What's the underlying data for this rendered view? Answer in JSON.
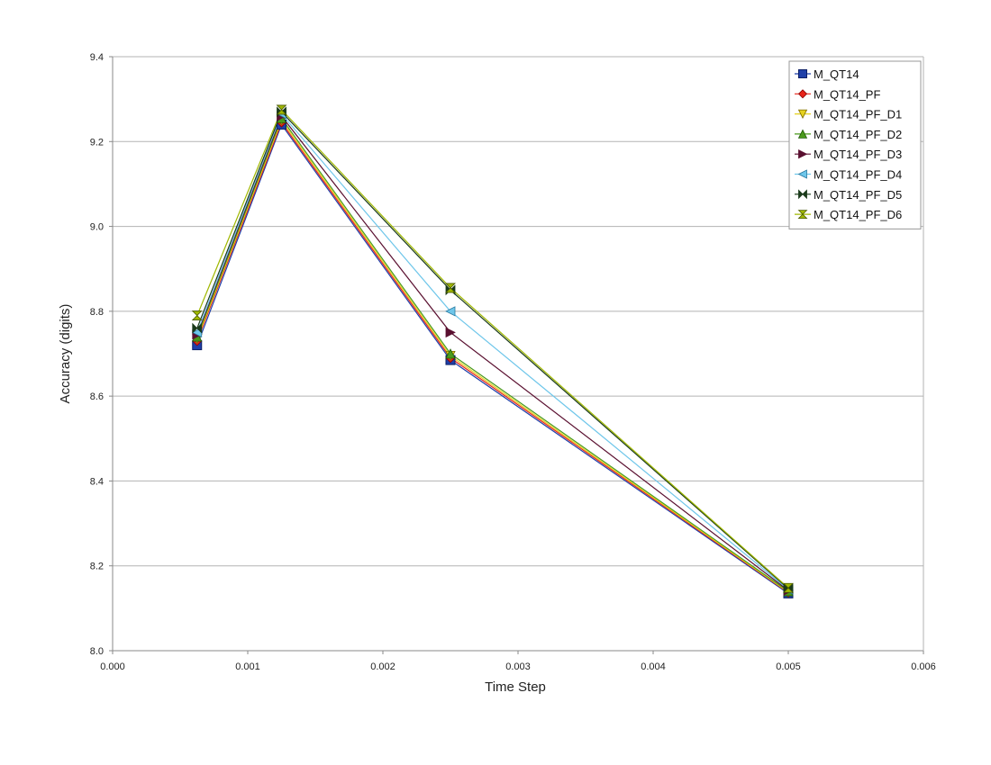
{
  "chart_data": {
    "type": "line",
    "title": "",
    "xlabel": "Time Step",
    "ylabel": "Accuracy (digits)",
    "xlim": [
      0.0,
      0.006
    ],
    "ylim": [
      8.0,
      9.4
    ],
    "xticks": [
      "0.000",
      "0.001",
      "0.002",
      "0.003",
      "0.004",
      "0.005",
      "0.006"
    ],
    "yticks": [
      "8.0",
      "8.2",
      "8.4",
      "8.6",
      "8.8",
      "9.0",
      "9.2",
      "9.4"
    ],
    "grid": "horizontal",
    "legend_position": "top-right",
    "x": [
      0.000625,
      0.00125,
      0.0025,
      0.005
    ],
    "series": [
      {
        "name": "M_QT14",
        "color": "#1f3fa8",
        "marker": "square",
        "values": [
          8.72,
          9.24,
          8.685,
          8.135
        ]
      },
      {
        "name": "M_QT14_PF",
        "color": "#e8241a",
        "marker": "diamond",
        "values": [
          8.73,
          9.245,
          8.69,
          8.137
        ]
      },
      {
        "name": "M_QT14_PF_D1",
        "color": "#e6d21e",
        "marker": "triangle-down",
        "values": [
          8.735,
          9.25,
          8.695,
          8.138
        ]
      },
      {
        "name": "M_QT14_PF_D2",
        "color": "#4a9a1c",
        "marker": "triangle-up",
        "values": [
          8.74,
          9.255,
          8.7,
          8.14
        ]
      },
      {
        "name": "M_QT14_PF_D3",
        "color": "#5a1030",
        "marker": "triangle-right",
        "values": [
          8.745,
          9.26,
          8.75,
          8.142
        ]
      },
      {
        "name": "M_QT14_PF_D4",
        "color": "#6ec6ea",
        "marker": "triangle-left",
        "values": [
          8.75,
          9.265,
          8.8,
          8.144
        ]
      },
      {
        "name": "M_QT14_PF_D5",
        "color": "#1a3a1a",
        "marker": "bowtie-h",
        "values": [
          8.76,
          9.27,
          8.85,
          8.146
        ]
      },
      {
        "name": "M_QT14_PF_D6",
        "color": "#a0b800",
        "marker": "hourglass",
        "values": [
          8.79,
          9.275,
          8.855,
          8.148
        ]
      }
    ]
  }
}
